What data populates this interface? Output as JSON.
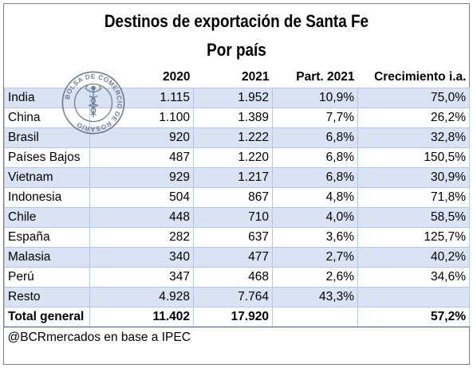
{
  "title": "Destinos de exportación de Santa Fe",
  "subtitle": "Por país",
  "headers": [
    "",
    "2020",
    "2021",
    "Part. 2021",
    "Crecimiento i.a."
  ],
  "rows": [
    {
      "pais": "India",
      "y2020": "1.115",
      "y2021": "1.952",
      "part": "10,9%",
      "crec": "75,0%"
    },
    {
      "pais": "China",
      "y2020": "1.100",
      "y2021": "1.389",
      "part": "7,7%",
      "crec": "26,2%"
    },
    {
      "pais": "Brasil",
      "y2020": "920",
      "y2021": "1.222",
      "part": "6,8%",
      "crec": "32,8%"
    },
    {
      "pais": "Países Bajos",
      "y2020": "487",
      "y2021": "1.220",
      "part": "6,8%",
      "crec": "150,5%"
    },
    {
      "pais": "Vietnam",
      "y2020": "929",
      "y2021": "1.217",
      "part": "6,8%",
      "crec": "30,9%"
    },
    {
      "pais": "Indonesia",
      "y2020": "504",
      "y2021": "867",
      "part": "4,8%",
      "crec": "71,8%"
    },
    {
      "pais": "Chile",
      "y2020": "448",
      "y2021": "710",
      "part": "4,0%",
      "crec": "58,5%"
    },
    {
      "pais": "España",
      "y2020": "282",
      "y2021": "637",
      "part": "3,6%",
      "crec": "125,7%"
    },
    {
      "pais": "Malasia",
      "y2020": "340",
      "y2021": "477",
      "part": "2,7%",
      "crec": "40,2%"
    },
    {
      "pais": "Perú",
      "y2020": "347",
      "y2021": "468",
      "part": "2,6%",
      "crec": "34,6%"
    },
    {
      "pais": "Resto",
      "y2020": "4.928",
      "y2021": "7.764",
      "part": "43,3%",
      "crec": ""
    }
  ],
  "total": {
    "pais": "Total general",
    "y2020": "11.402",
    "y2021": "17.920",
    "part": "",
    "crec": "57,2%"
  },
  "note": "@BCRmercados en base a IPEC",
  "seal": {
    "text": "BOLSA DE COMERCIO DE ROSARIO",
    "icon": "caduceus-icon",
    "color": "#5a6a80"
  },
  "colors": {
    "alt_row": "#dae3f3",
    "border": "#b4c7e7",
    "total_rule": "#3a5a9a"
  }
}
